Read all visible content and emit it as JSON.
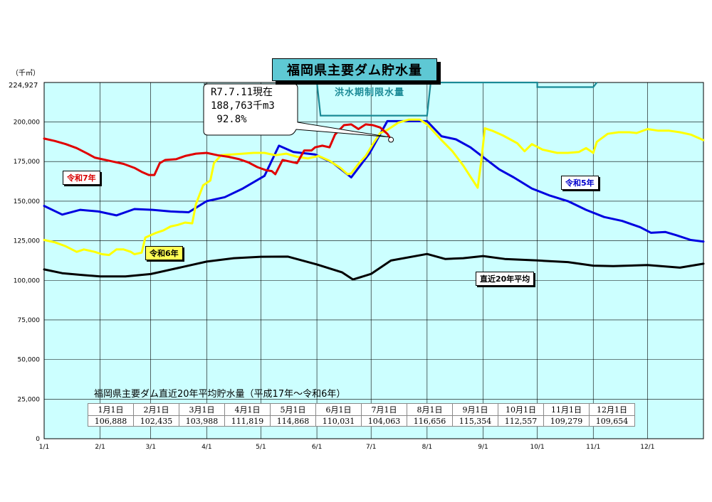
{
  "chart_data": {
    "type": "line",
    "title": "福岡県主要ダム貯水量",
    "unit_label": "（千㎥）",
    "y_max_label": "224,927",
    "ylim": [
      0,
      224927
    ],
    "y_ticks": [
      0,
      25000,
      50000,
      75000,
      100000,
      125000,
      150000,
      175000,
      200000
    ],
    "y_tick_labels": [
      "0",
      "25,000",
      "50,000",
      "75,000",
      "100,000",
      "125,000",
      "150,000",
      "175,000",
      "200,000"
    ],
    "x_domain_days": [
      0,
      365
    ],
    "x_ticks": [
      {
        "label": "1/1",
        "day": 0
      },
      {
        "label": "2/1",
        "day": 31
      },
      {
        "label": "3/1",
        "day": 59
      },
      {
        "label": "4/1",
        "day": 90
      },
      {
        "label": "5/1",
        "day": 120
      },
      {
        "label": "6/1",
        "day": 151
      },
      {
        "label": "7/1",
        "day": 181
      },
      {
        "label": "8/1",
        "day": 212
      },
      {
        "label": "9/1",
        "day": 243
      },
      {
        "label": "10/1",
        "day": 273
      },
      {
        "label": "11/1",
        "day": 304
      },
      {
        "label": "12/1",
        "day": 334
      }
    ],
    "grid": true,
    "background_color": "#ccffff",
    "flood_limit": {
      "label": "洪水期制限水量",
      "color": "#1a8a96",
      "points": [
        [
          151,
          224927
        ],
        [
          153,
          204000
        ],
        [
          212,
          204000
        ],
        [
          214,
          224927
        ],
        [
          273,
          224927
        ],
        [
          273,
          222000
        ],
        [
          304,
          222000
        ],
        [
          306,
          224927
        ]
      ]
    },
    "series": [
      {
        "name": "令和7年",
        "color": "#e00000",
        "points": [
          [
            0,
            189500
          ],
          [
            6,
            188000
          ],
          [
            12,
            186000
          ],
          [
            18,
            183500
          ],
          [
            24,
            180000
          ],
          [
            28,
            177500
          ],
          [
            32,
            176500
          ],
          [
            38,
            175000
          ],
          [
            44,
            173500
          ],
          [
            50,
            171000
          ],
          [
            54,
            168500
          ],
          [
            58,
            166500
          ],
          [
            61,
            166500
          ],
          [
            64,
            174000
          ],
          [
            67,
            176000
          ],
          [
            73,
            176500
          ],
          [
            78,
            178500
          ],
          [
            84,
            180000
          ],
          [
            90,
            180500
          ],
          [
            96,
            179000
          ],
          [
            102,
            178000
          ],
          [
            108,
            176500
          ],
          [
            113,
            174500
          ],
          [
            118,
            171500
          ],
          [
            123,
            169500
          ],
          [
            126,
            169000
          ],
          [
            128,
            167000
          ],
          [
            132,
            176000
          ],
          [
            136,
            175000
          ],
          [
            140,
            174000
          ],
          [
            144,
            182000
          ],
          [
            148,
            182000
          ],
          [
            150,
            184000
          ],
          [
            154,
            185000
          ],
          [
            158,
            184000
          ],
          [
            161,
            192000
          ],
          [
            166,
            198000
          ],
          [
            170,
            198500
          ],
          [
            174,
            195500
          ],
          [
            178,
            198500
          ],
          [
            182,
            198000
          ],
          [
            186,
            196500
          ],
          [
            190,
            192500
          ],
          [
            192,
            189000
          ]
        ]
      },
      {
        "name": "令和6年",
        "color": "#ffff00",
        "points": [
          [
            0,
            125500
          ],
          [
            6,
            124000
          ],
          [
            12,
            121500
          ],
          [
            18,
            118000
          ],
          [
            22,
            119500
          ],
          [
            28,
            118000
          ],
          [
            32,
            116500
          ],
          [
            36,
            116000
          ],
          [
            40,
            119500
          ],
          [
            44,
            119500
          ],
          [
            48,
            118000
          ],
          [
            50,
            116500
          ],
          [
            54,
            117500
          ],
          [
            56,
            127000
          ],
          [
            62,
            130000
          ],
          [
            66,
            131500
          ],
          [
            70,
            134000
          ],
          [
            74,
            135000
          ],
          [
            78,
            136500
          ],
          [
            82,
            136000
          ],
          [
            84,
            148000
          ],
          [
            88,
            160000
          ],
          [
            92,
            163000
          ],
          [
            94,
            174000
          ],
          [
            98,
            179000
          ],
          [
            104,
            179500
          ],
          [
            110,
            180000
          ],
          [
            116,
            180500
          ],
          [
            122,
            180500
          ],
          [
            128,
            179000
          ],
          [
            134,
            180000
          ],
          [
            140,
            178000
          ],
          [
            146,
            177000
          ],
          [
            152,
            178500
          ],
          [
            158,
            175500
          ],
          [
            164,
            171000
          ],
          [
            168,
            167000
          ],
          [
            170,
            167500
          ],
          [
            174,
            173500
          ],
          [
            178,
            178500
          ],
          [
            182,
            186000
          ],
          [
            186,
            193000
          ],
          [
            190,
            195000
          ],
          [
            196,
            199500
          ],
          [
            202,
            201500
          ],
          [
            208,
            201500
          ],
          [
            212,
            198500
          ],
          [
            216,
            193500
          ],
          [
            220,
            188500
          ],
          [
            226,
            181500
          ],
          [
            232,
            172500
          ],
          [
            236,
            165500
          ],
          [
            240,
            158500
          ],
          [
            242,
            175500
          ],
          [
            244,
            196000
          ],
          [
            248,
            194500
          ],
          [
            254,
            191500
          ],
          [
            258,
            189000
          ],
          [
            262,
            186500
          ],
          [
            266,
            181500
          ],
          [
            270,
            186000
          ],
          [
            276,
            182500
          ],
          [
            284,
            180500
          ],
          [
            290,
            180500
          ],
          [
            296,
            181000
          ],
          [
            300,
            183500
          ],
          [
            304,
            180500
          ],
          [
            306,
            187500
          ],
          [
            312,
            192500
          ],
          [
            318,
            193500
          ],
          [
            324,
            193500
          ],
          [
            328,
            193000
          ],
          [
            334,
            195500
          ],
          [
            340,
            194500
          ],
          [
            346,
            194500
          ],
          [
            352,
            193500
          ],
          [
            358,
            192000
          ],
          [
            365,
            188500
          ]
        ]
      },
      {
        "name": "令和5年",
        "color": "#0000e0",
        "points": [
          [
            0,
            147000
          ],
          [
            10,
            141500
          ],
          [
            20,
            144500
          ],
          [
            30,
            143500
          ],
          [
            40,
            141000
          ],
          [
            50,
            145000
          ],
          [
            60,
            144500
          ],
          [
            70,
            143500
          ],
          [
            80,
            143000
          ],
          [
            90,
            150000
          ],
          [
            100,
            152500
          ],
          [
            110,
            158000
          ],
          [
            122,
            166000
          ],
          [
            130,
            185000
          ],
          [
            138,
            181000
          ],
          [
            150,
            179500
          ],
          [
            160,
            174000
          ],
          [
            170,
            165000
          ],
          [
            180,
            180000
          ],
          [
            190,
            200500
          ],
          [
            198,
            200500
          ],
          [
            206,
            200500
          ],
          [
            212,
            200500
          ],
          [
            220,
            191000
          ],
          [
            228,
            189000
          ],
          [
            236,
            184000
          ],
          [
            244,
            177000
          ],
          [
            252,
            170000
          ],
          [
            260,
            165000
          ],
          [
            270,
            158000
          ],
          [
            280,
            153500
          ],
          [
            290,
            150000
          ],
          [
            300,
            144500
          ],
          [
            310,
            140000
          ],
          [
            320,
            137500
          ],
          [
            330,
            133500
          ],
          [
            336,
            130000
          ],
          [
            344,
            130500
          ],
          [
            350,
            128500
          ],
          [
            358,
            125500
          ],
          [
            365,
            124500
          ]
        ]
      },
      {
        "name": "直近20年平均",
        "color": "#000000",
        "points": [
          [
            0,
            106888
          ],
          [
            10,
            104500
          ],
          [
            20,
            103500
          ],
          [
            31,
            102435
          ],
          [
            45,
            102500
          ],
          [
            59,
            103988
          ],
          [
            75,
            108000
          ],
          [
            90,
            111819
          ],
          [
            105,
            114000
          ],
          [
            120,
            114868
          ],
          [
            135,
            115000
          ],
          [
            151,
            110031
          ],
          [
            165,
            105000
          ],
          [
            171,
            100500
          ],
          [
            181,
            104063
          ],
          [
            192,
            112500
          ],
          [
            212,
            116656
          ],
          [
            222,
            113500
          ],
          [
            232,
            114000
          ],
          [
            243,
            115354
          ],
          [
            255,
            113500
          ],
          [
            273,
            112557
          ],
          [
            290,
            111500
          ],
          [
            304,
            109279
          ],
          [
            315,
            109000
          ],
          [
            334,
            109654
          ],
          [
            352,
            108000
          ],
          [
            365,
            110500
          ]
        ]
      }
    ],
    "callout": {
      "lines": [
        "R7.7.11現在",
        "188,763千m3",
        " 92.8%"
      ],
      "point": [
        192,
        188763
      ]
    },
    "average_table": {
      "title": "福岡県主要ダム直近20年平均貯水量（平成17年～令和6年）",
      "headers": [
        "1月1日",
        "2月1日",
        "3月1日",
        "4月1日",
        "5月1日",
        "6月1日",
        "7月1日",
        "8月1日",
        "9月1日",
        "10月1日",
        "11月1日",
        "12月1日"
      ],
      "values": [
        "106,888",
        "102,435",
        "103,988",
        "111,819",
        "114,868",
        "110,031",
        "104,063",
        "116,656",
        "115,354",
        "112,557",
        "109,279",
        "109,654"
      ]
    }
  }
}
